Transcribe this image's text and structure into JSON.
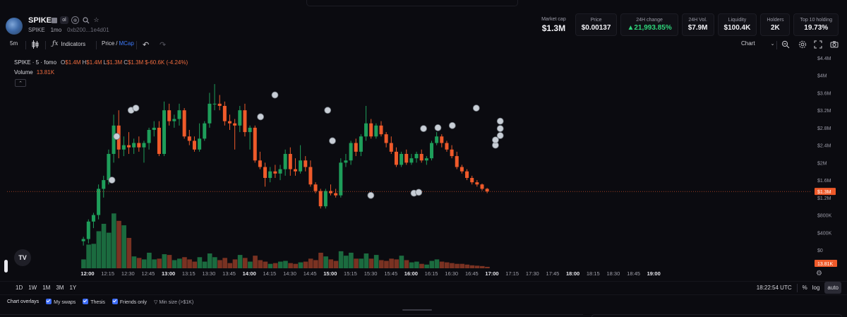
{
  "token": {
    "name": "SPIKE",
    "ticker": "SPIKE",
    "age": "1mo",
    "address": "0xb200...1e4d01",
    "badge": "ol"
  },
  "stats": [
    {
      "label": "Market cap",
      "value": "$1.3M"
    },
    {
      "label": "Price",
      "value": "$0.00137"
    },
    {
      "label": "24H change",
      "value": "▲21,993.85%"
    },
    {
      "label": "24H Vol.",
      "value": "$7.9M"
    },
    {
      "label": "Liquidity",
      "value": "$100.4K"
    },
    {
      "label": "Holders",
      "value": "2K"
    },
    {
      "label": "Top 10 holding",
      "value": "19.73%"
    }
  ],
  "toolbar": {
    "interval": "5m",
    "indicators": "Indicators",
    "price_label": "Price",
    "divider": "/",
    "mcap_label": "MCap",
    "chart_label": "Chart"
  },
  "legend": {
    "symbol": "SPIKE · 5 · fomo",
    "o_label": "O",
    "o_val": "$1.4M",
    "h_label": "H",
    "h_val": "$1.4M",
    "l_label": "L",
    "l_val": "$1.3M",
    "c_label": "C",
    "c_val": "$1.3M",
    "change": "$-60.6K (-4.24%)",
    "volume_label": "Volume",
    "volume_val": "13.81K"
  },
  "price_axis": {
    "ticks": [
      "$4.4M",
      "$4M",
      "$3.6M",
      "$3.2M",
      "$2.8M",
      "$2.4M",
      "$2M",
      "$1.6M",
      "$1.2M",
      "$800K",
      "$400K",
      "$0"
    ],
    "current": "$1.3M",
    "volume_current": "13.81K"
  },
  "time_axis": {
    "ticks": [
      "12:00",
      "12:15",
      "12:30",
      "12:45",
      "13:00",
      "13:15",
      "13:30",
      "13:45",
      "14:00",
      "14:15",
      "14:30",
      "14:45",
      "15:00",
      "15:15",
      "15:30",
      "15:45",
      "16:00",
      "16:15",
      "16:30",
      "16:45",
      "17:00",
      "17:15",
      "17:30",
      "17:45",
      "18:00",
      "18:15",
      "18:30",
      "18:45",
      "19:00"
    ],
    "bold": [
      "12:00",
      "13:00",
      "14:00",
      "15:00",
      "16:00",
      "17:00",
      "18:00",
      "19:00"
    ]
  },
  "timeframes": [
    "1D",
    "1W",
    "1M",
    "3M",
    "1Y"
  ],
  "clock": "18:22:54 UTC",
  "scale_buttons": [
    "%",
    "log",
    "auto"
  ],
  "overlays": {
    "title": "Chart overlays",
    "items": [
      "My swaps",
      "Thesis",
      "Friends only"
    ],
    "min_size": "Min size (>$1K)"
  },
  "colors": {
    "up": "#1e9e5a",
    "down": "#ef5a2a",
    "vol_up": "#1b6b3f",
    "vol_down": "#7a3222",
    "accent": "#3d7bfd",
    "last_price_line": "#ef5a2a"
  },
  "chart_data": {
    "type": "candlestick",
    "interval_minutes": 5,
    "start_time": "12:00",
    "unit": "USD market cap",
    "ylim": [
      0,
      4400000
    ],
    "candles": [
      {
        "o": 0,
        "h": 0,
        "l": 0,
        "c": 0,
        "v": 0
      },
      {
        "o": 200000,
        "h": 300000,
        "l": 100000,
        "c": 250000,
        "v": 120
      },
      {
        "o": 250000,
        "h": 700000,
        "l": 150000,
        "c": 650000,
        "v": 320
      },
      {
        "o": 650000,
        "h": 850000,
        "l": 500000,
        "c": 800000,
        "v": 330
      },
      {
        "o": 800000,
        "h": 1500000,
        "l": 700000,
        "c": 1400000,
        "v": 500
      },
      {
        "o": 1400000,
        "h": 1700000,
        "l": 1200000,
        "c": 1600000,
        "v": 600
      },
      {
        "o": 1600000,
        "h": 2300000,
        "l": 1500000,
        "c": 2200000,
        "v": 480
      },
      {
        "o": 2200000,
        "h": 3100000,
        "l": 2000000,
        "c": 2850000,
        "v": 740
      },
      {
        "o": 2850000,
        "h": 3200000,
        "l": 2100000,
        "c": 2300000,
        "v": 640
      },
      {
        "o": 2300000,
        "h": 2600000,
        "l": 2150000,
        "c": 2400000,
        "v": 580
      },
      {
        "o": 2400000,
        "h": 2700000,
        "l": 2200000,
        "c": 2350000,
        "v": 410
      },
      {
        "o": 2350000,
        "h": 2550000,
        "l": 2200000,
        "c": 2450000,
        "v": 160
      },
      {
        "o": 2450000,
        "h": 2600000,
        "l": 2250000,
        "c": 2350000,
        "v": 140
      },
      {
        "o": 2350000,
        "h": 2500000,
        "l": 2000000,
        "c": 2450000,
        "v": 120
      },
      {
        "o": 2450000,
        "h": 2800000,
        "l": 2300000,
        "c": 2750000,
        "v": 210
      },
      {
        "o": 2750000,
        "h": 2950000,
        "l": 2600000,
        "c": 2800000,
        "v": 120
      },
      {
        "o": 2800000,
        "h": 2950000,
        "l": 2150000,
        "c": 2200000,
        "v": 130
      },
      {
        "o": 2200000,
        "h": 3400000,
        "l": 2150000,
        "c": 3200000,
        "v": 190
      },
      {
        "o": 3200000,
        "h": 3350000,
        "l": 2850000,
        "c": 2950000,
        "v": 180
      },
      {
        "o": 2950000,
        "h": 3100000,
        "l": 2800000,
        "c": 3000000,
        "v": 110
      },
      {
        "o": 3000000,
        "h": 3350000,
        "l": 2850000,
        "c": 3200000,
        "v": 130
      },
      {
        "o": 3200000,
        "h": 3250000,
        "l": 2550000,
        "c": 2600000,
        "v": 150
      },
      {
        "o": 2600000,
        "h": 2750000,
        "l": 2400000,
        "c": 2500000,
        "v": 120
      },
      {
        "o": 2500000,
        "h": 2600000,
        "l": 2250000,
        "c": 2300000,
        "v": 90
      },
      {
        "o": 2300000,
        "h": 2900000,
        "l": 2250000,
        "c": 2550000,
        "v": 150
      },
      {
        "o": 2550000,
        "h": 2950000,
        "l": 2500000,
        "c": 2900000,
        "v": 90
      },
      {
        "o": 2900000,
        "h": 3600000,
        "l": 2800000,
        "c": 3350000,
        "v": 200
      },
      {
        "o": 3350000,
        "h": 3800000,
        "l": 3200000,
        "c": 3350000,
        "v": 150
      },
      {
        "o": 3350000,
        "h": 3550000,
        "l": 3200000,
        "c": 3300000,
        "v": 110
      },
      {
        "o": 3300000,
        "h": 3400000,
        "l": 2850000,
        "c": 2950000,
        "v": 140
      },
      {
        "o": 2950000,
        "h": 3100000,
        "l": 2750000,
        "c": 2900000,
        "v": 70
      },
      {
        "o": 2900000,
        "h": 3000000,
        "l": 2300000,
        "c": 2850000,
        "v": 120
      },
      {
        "o": 2850000,
        "h": 3300000,
        "l": 2700000,
        "c": 3200000,
        "v": 180
      },
      {
        "o": 3200000,
        "h": 3350000,
        "l": 2600000,
        "c": 2700000,
        "v": 140
      },
      {
        "o": 2700000,
        "h": 2850000,
        "l": 2300000,
        "c": 2800000,
        "v": 90
      },
      {
        "o": 2800000,
        "h": 2850000,
        "l": 2000000,
        "c": 2050000,
        "v": 170
      },
      {
        "o": 2050000,
        "h": 2250000,
        "l": 1850000,
        "c": 1900000,
        "v": 110
      },
      {
        "o": 1900000,
        "h": 2000000,
        "l": 1450000,
        "c": 1650000,
        "v": 90
      },
      {
        "o": 1650000,
        "h": 1900000,
        "l": 1550000,
        "c": 1800000,
        "v": 60
      },
      {
        "o": 1800000,
        "h": 1950000,
        "l": 1650000,
        "c": 1750000,
        "v": 70
      },
      {
        "o": 1750000,
        "h": 1950000,
        "l": 1600000,
        "c": 1850000,
        "v": 90
      },
      {
        "o": 1850000,
        "h": 2300000,
        "l": 1700000,
        "c": 2200000,
        "v": 100
      },
      {
        "o": 2200000,
        "h": 2350000,
        "l": 1700000,
        "c": 1850000,
        "v": 70
      },
      {
        "o": 1850000,
        "h": 2100000,
        "l": 1700000,
        "c": 1800000,
        "v": 60
      },
      {
        "o": 1800000,
        "h": 2400000,
        "l": 1750000,
        "c": 2050000,
        "v": 80
      },
      {
        "o": 2050000,
        "h": 2150000,
        "l": 1800000,
        "c": 1900000,
        "v": 90
      },
      {
        "o": 1900000,
        "h": 2050000,
        "l": 1450000,
        "c": 1500000,
        "v": 130
      },
      {
        "o": 1500000,
        "h": 1550000,
        "l": 1300000,
        "c": 1350000,
        "v": 110
      },
      {
        "o": 1350000,
        "h": 1400000,
        "l": 950000,
        "c": 1000000,
        "v": 210
      },
      {
        "o": 1000000,
        "h": 1400000,
        "l": 950000,
        "c": 1350000,
        "v": 160
      },
      {
        "o": 1350000,
        "h": 1500000,
        "l": 1250000,
        "c": 1300000,
        "v": 120
      },
      {
        "o": 1300000,
        "h": 1400000,
        "l": 1200000,
        "c": 1250000,
        "v": 100
      },
      {
        "o": 1250000,
        "h": 2100000,
        "l": 1200000,
        "c": 2000000,
        "v": 230
      },
      {
        "o": 2000000,
        "h": 2200000,
        "l": 1900000,
        "c": 2050000,
        "v": 170
      },
      {
        "o": 2050000,
        "h": 2500000,
        "l": 1950000,
        "c": 2450000,
        "v": 210
      },
      {
        "o": 2450000,
        "h": 2550000,
        "l": 2150000,
        "c": 2250000,
        "v": 130
      },
      {
        "o": 2250000,
        "h": 2650000,
        "l": 2150000,
        "c": 2600000,
        "v": 130
      },
      {
        "o": 2600000,
        "h": 3300000,
        "l": 2500000,
        "c": 2900000,
        "v": 200
      },
      {
        "o": 2900000,
        "h": 3000000,
        "l": 2550000,
        "c": 2600000,
        "v": 130
      },
      {
        "o": 2600000,
        "h": 2900000,
        "l": 2550000,
        "c": 2850000,
        "v": 180
      },
      {
        "o": 2850000,
        "h": 2950000,
        "l": 2600000,
        "c": 2650000,
        "v": 110
      },
      {
        "o": 2650000,
        "h": 2700000,
        "l": 2350000,
        "c": 2450000,
        "v": 100
      },
      {
        "o": 2450000,
        "h": 2600000,
        "l": 2200000,
        "c": 2250000,
        "v": 130
      },
      {
        "o": 2250000,
        "h": 2350000,
        "l": 1900000,
        "c": 1950000,
        "v": 120
      },
      {
        "o": 1950000,
        "h": 2250000,
        "l": 1900000,
        "c": 2200000,
        "v": 170
      },
      {
        "o": 2200000,
        "h": 2300000,
        "l": 1950000,
        "c": 2000000,
        "v": 110
      },
      {
        "o": 2000000,
        "h": 2200000,
        "l": 1950000,
        "c": 2100000,
        "v": 80
      },
      {
        "o": 2100000,
        "h": 2250000,
        "l": 2000000,
        "c": 2200000,
        "v": 90
      },
      {
        "o": 2200000,
        "h": 2300000,
        "l": 2000000,
        "c": 2050000,
        "v": 60
      },
      {
        "o": 2050000,
        "h": 2150000,
        "l": 1950000,
        "c": 2100000,
        "v": 50
      },
      {
        "o": 2100000,
        "h": 2500000,
        "l": 2050000,
        "c": 2450000,
        "v": 100
      },
      {
        "o": 2450000,
        "h": 2700000,
        "l": 2400000,
        "c": 2600000,
        "v": 120
      },
      {
        "o": 2600000,
        "h": 2650000,
        "l": 2350000,
        "c": 2450000,
        "v": 90
      },
      {
        "o": 2450000,
        "h": 2500000,
        "l": 2250000,
        "c": 2300000,
        "v": 80
      },
      {
        "o": 2300000,
        "h": 2400000,
        "l": 2100000,
        "c": 2150000,
        "v": 70
      },
      {
        "o": 2150000,
        "h": 2250000,
        "l": 1850000,
        "c": 1900000,
        "v": 60
      },
      {
        "o": 1900000,
        "h": 1950000,
        "l": 1750000,
        "c": 1800000,
        "v": 60
      },
      {
        "o": 1800000,
        "h": 1850000,
        "l": 1600000,
        "c": 1650000,
        "v": 50
      },
      {
        "o": 1650000,
        "h": 1700000,
        "l": 1500000,
        "c": 1550000,
        "v": 40
      },
      {
        "o": 1550000,
        "h": 1600000,
        "l": 1450000,
        "c": 1500000,
        "v": 35
      },
      {
        "o": 1500000,
        "h": 1520000,
        "l": 1360000,
        "c": 1400000,
        "v": 30
      },
      {
        "o": 1400000,
        "h": 1420000,
        "l": 1300000,
        "c": 1340000,
        "v": 20
      }
    ]
  }
}
